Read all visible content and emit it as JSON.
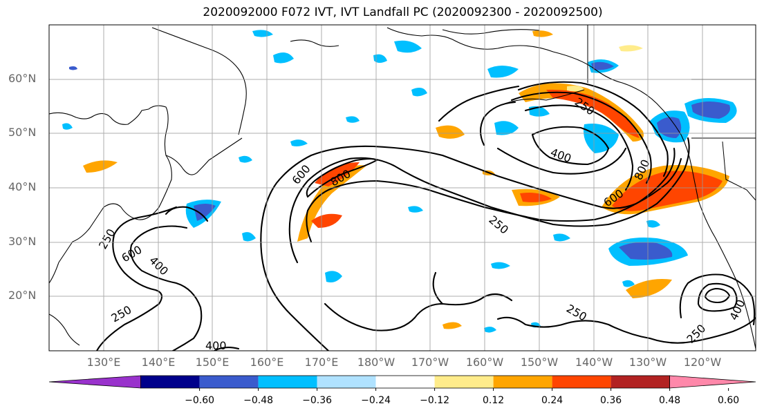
{
  "title": "2020092000 F072 IVT, IVT Landfall PC (2020092300 - 2020092500)",
  "lat_labels": [
    "60°N",
    "50°N",
    "40°N",
    "30°N",
    "20°N"
  ],
  "lon_labels": [
    "130°E",
    "140°E",
    "150°E",
    "160°E",
    "170°E",
    "180°W",
    "170°W",
    "160°W",
    "150°W",
    "140°W",
    "130°W",
    "120°W"
  ],
  "contour_levels": [
    "250",
    "400",
    "600",
    "800"
  ],
  "colorbar": {
    "labels": [
      "−0.60",
      "−0.48",
      "−0.36",
      "−0.24",
      "−0.12",
      "0.12",
      "0.24",
      "0.36",
      "0.48",
      "0.60"
    ],
    "colors": [
      "#9932cc",
      "#00008b",
      "#3a5bcd",
      "#00bfff",
      "#b0e2ff",
      "#ffffff",
      "#ffec8b",
      "#ffa500",
      "#ff4500",
      "#b22222",
      "#ff88aa"
    ]
  }
}
